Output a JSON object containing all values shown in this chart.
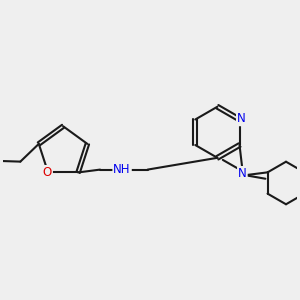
{
  "bg_color": "#efefef",
  "bond_color": "#1a1a1a",
  "bond_width": 1.5,
  "dbo": 0.05,
  "atom_colors": {
    "N": "#0000ee",
    "O": "#dd0000",
    "C": "#1a1a1a"
  },
  "fs": 8.5
}
